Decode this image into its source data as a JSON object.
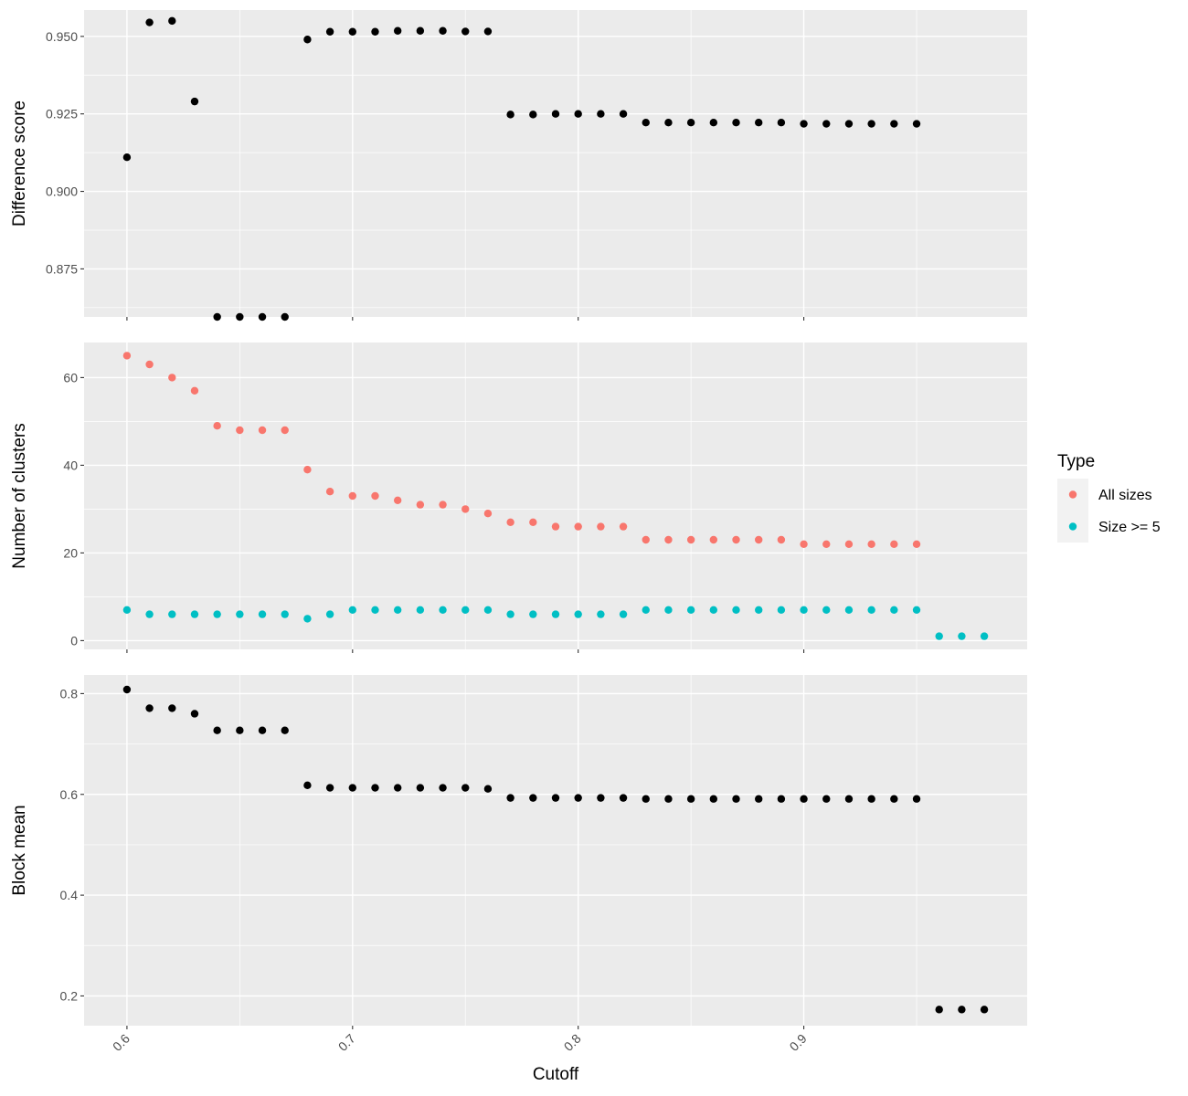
{
  "chart_data": [
    {
      "type": "scatter",
      "ylabel": "Difference score",
      "xlabel": "",
      "ylim": [
        0.8595,
        0.9585
      ],
      "yticks": [
        0.875,
        0.9,
        0.925,
        0.95
      ],
      "ytick_labels": [
        "0.875",
        "0.900",
        "0.925",
        "0.950"
      ],
      "series": [
        {
          "color": "#000000",
          "x": [
            0.6,
            0.61,
            0.62,
            0.63,
            0.64,
            0.65,
            0.66,
            0.67,
            0.68,
            0.69,
            0.7,
            0.71,
            0.72,
            0.73,
            0.74,
            0.75,
            0.76,
            0.77,
            0.78,
            0.79,
            0.8,
            0.81,
            0.82,
            0.83,
            0.84,
            0.85,
            0.86,
            0.87,
            0.88,
            0.89,
            0.9,
            0.91,
            0.92,
            0.93,
            0.94,
            0.95
          ],
          "y": [
            0.911,
            0.9545,
            0.955,
            0.929,
            0.8595,
            0.8595,
            0.8595,
            0.8595,
            0.949,
            0.9515,
            0.9515,
            0.9515,
            0.9518,
            0.9518,
            0.9518,
            0.9516,
            0.9516,
            0.9248,
            0.9248,
            0.925,
            0.925,
            0.925,
            0.925,
            0.9222,
            0.9222,
            0.9222,
            0.9222,
            0.9222,
            0.9222,
            0.9222,
            0.9218,
            0.9218,
            0.9218,
            0.9218,
            0.9218,
            0.9218
          ]
        }
      ]
    },
    {
      "type": "scatter",
      "ylabel": "Number of clusters",
      "xlabel": "",
      "ylim": [
        -2,
        68
      ],
      "yticks": [
        0,
        20,
        40,
        60
      ],
      "ytick_labels": [
        "0",
        "20",
        "40",
        "60"
      ],
      "legend": {
        "title": "Type",
        "position": "right"
      },
      "series": [
        {
          "name": "All sizes",
          "color": "#F8766D",
          "x": [
            0.6,
            0.61,
            0.62,
            0.63,
            0.64,
            0.65,
            0.66,
            0.67,
            0.68,
            0.69,
            0.7,
            0.71,
            0.72,
            0.73,
            0.74,
            0.75,
            0.76,
            0.77,
            0.78,
            0.79,
            0.8,
            0.81,
            0.82,
            0.83,
            0.84,
            0.85,
            0.86,
            0.87,
            0.88,
            0.89,
            0.9,
            0.91,
            0.92,
            0.93,
            0.94,
            0.95
          ],
          "y": [
            65,
            63,
            60,
            57,
            49,
            48,
            48,
            48,
            39,
            34,
            33,
            33,
            32,
            31,
            31,
            30,
            29,
            27,
            27,
            26,
            26,
            26,
            26,
            23,
            23,
            23,
            23,
            23,
            23,
            23,
            22,
            22,
            22,
            22,
            22,
            22
          ]
        },
        {
          "name": "Size >= 5",
          "color": "#00BFC4",
          "x": [
            0.6,
            0.61,
            0.62,
            0.63,
            0.64,
            0.65,
            0.66,
            0.67,
            0.68,
            0.69,
            0.7,
            0.71,
            0.72,
            0.73,
            0.74,
            0.75,
            0.76,
            0.77,
            0.78,
            0.79,
            0.8,
            0.81,
            0.82,
            0.83,
            0.84,
            0.85,
            0.86,
            0.87,
            0.88,
            0.89,
            0.9,
            0.91,
            0.92,
            0.93,
            0.94,
            0.95,
            0.96,
            0.97,
            0.98
          ],
          "y": [
            7,
            6,
            6,
            6,
            6,
            6,
            6,
            6,
            5,
            6,
            7,
            7,
            7,
            7,
            7,
            7,
            7,
            6,
            6,
            6,
            6,
            6,
            6,
            7,
            7,
            7,
            7,
            7,
            7,
            7,
            7,
            7,
            7,
            7,
            7,
            7,
            1,
            1,
            1
          ]
        }
      ]
    },
    {
      "type": "scatter",
      "ylabel": "Block mean",
      "xlabel": "Cutoff",
      "xlim": [
        0.581,
        0.999
      ],
      "xticks": [
        0.6,
        0.7,
        0.8,
        0.9
      ],
      "xtick_labels": [
        "0.6",
        "0.7",
        "0.8",
        "0.9"
      ],
      "ylim": [
        0.141,
        0.837
      ],
      "yticks": [
        0.2,
        0.4,
        0.6,
        0.8
      ],
      "ytick_labels": [
        "0.2",
        "0.4",
        "0.6",
        "0.8"
      ],
      "series": [
        {
          "color": "#000000",
          "x": [
            0.6,
            0.61,
            0.62,
            0.63,
            0.64,
            0.65,
            0.66,
            0.67,
            0.68,
            0.69,
            0.7,
            0.71,
            0.72,
            0.73,
            0.74,
            0.75,
            0.76,
            0.77,
            0.78,
            0.79,
            0.8,
            0.81,
            0.82,
            0.83,
            0.84,
            0.85,
            0.86,
            0.87,
            0.88,
            0.89,
            0.9,
            0.91,
            0.92,
            0.93,
            0.94,
            0.95,
            0.96,
            0.97,
            0.98
          ],
          "y": [
            0.808,
            0.771,
            0.771,
            0.76,
            0.727,
            0.727,
            0.727,
            0.727,
            0.618,
            0.613,
            0.613,
            0.613,
            0.613,
            0.613,
            0.613,
            0.613,
            0.611,
            0.593,
            0.593,
            0.593,
            0.593,
            0.593,
            0.593,
            0.591,
            0.591,
            0.591,
            0.591,
            0.591,
            0.591,
            0.591,
            0.591,
            0.591,
            0.591,
            0.591,
            0.591,
            0.591,
            0.173,
            0.173,
            0.173
          ]
        }
      ]
    }
  ],
  "legend": {
    "title": "Type",
    "items": [
      {
        "label": "All sizes",
        "color": "#F8766D"
      },
      {
        "label": "Size >= 5",
        "color": "#00BFC4"
      }
    ]
  },
  "x_axis": {
    "title": "Cutoff",
    "range": [
      0.581,
      0.999
    ],
    "ticks": [
      0.6,
      0.7,
      0.8,
      0.9
    ],
    "tick_labels": [
      "0.6",
      "0.7",
      "0.8",
      "0.9"
    ],
    "minor_ticks": [
      0.65,
      0.75,
      0.85,
      0.95
    ]
  }
}
